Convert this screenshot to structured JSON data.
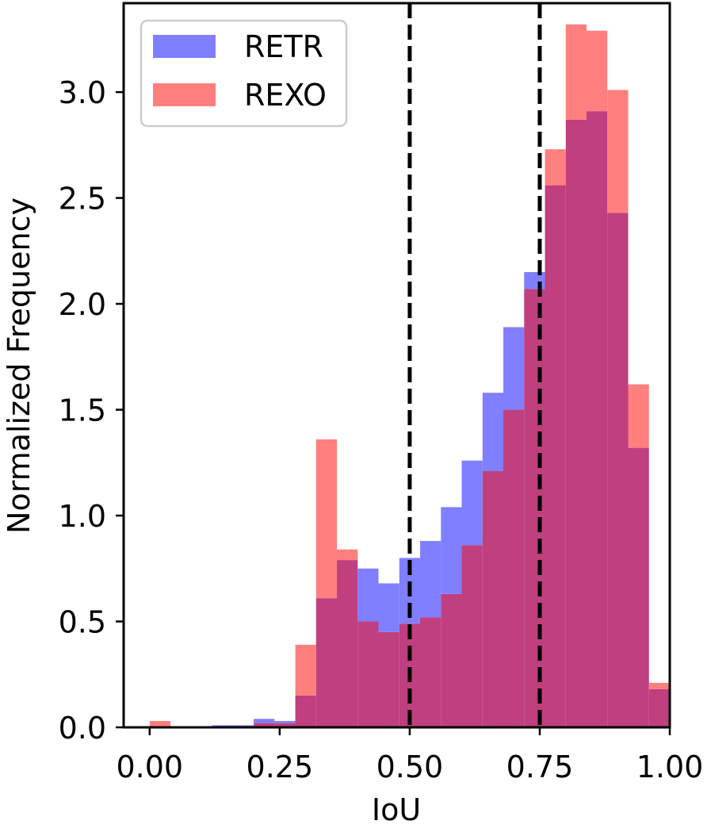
{
  "chart_data": {
    "type": "histogram",
    "xlabel": "IoU",
    "ylabel": "Normalized Frequency",
    "xlim": [
      -0.05,
      1.0
    ],
    "ylim": [
      0,
      3.42
    ],
    "x_ticks": [
      0.0,
      0.25,
      0.5,
      0.75,
      1.0
    ],
    "x_tick_labels": [
      "0.00",
      "0.25",
      "0.50",
      "0.75",
      "1.00"
    ],
    "y_ticks": [
      0.0,
      0.5,
      1.0,
      1.5,
      2.0,
      2.5,
      3.0
    ],
    "y_tick_labels": [
      "0.0",
      "0.5",
      "1.0",
      "1.5",
      "2.0",
      "2.5",
      "3.0"
    ],
    "bin_edges": [
      0.0,
      0.04,
      0.08,
      0.12,
      0.16,
      0.2,
      0.24,
      0.28,
      0.32,
      0.36,
      0.4,
      0.44,
      0.48,
      0.52,
      0.56,
      0.6,
      0.64,
      0.68,
      0.72,
      0.76,
      0.8,
      0.84,
      0.88,
      0.92,
      0.96,
      1.0
    ],
    "series": [
      {
        "name": "RETR",
        "color": "#7f7fff",
        "values": [
          0.0,
          0.0,
          0.0,
          0.01,
          0.01,
          0.04,
          0.03,
          0.15,
          0.61,
          0.79,
          0.75,
          0.68,
          0.8,
          0.88,
          1.04,
          1.26,
          1.58,
          1.89,
          2.15,
          2.56,
          2.87,
          2.91,
          2.43,
          1.32,
          0.18
        ]
      },
      {
        "name": "REXO",
        "color": "#ff7f7f",
        "values": [
          0.03,
          0.0,
          0.0,
          0.0,
          0.0,
          0.02,
          0.02,
          0.39,
          1.36,
          0.84,
          0.5,
          0.45,
          0.49,
          0.52,
          0.63,
          0.86,
          1.21,
          1.5,
          2.07,
          2.73,
          3.32,
          3.29,
          3.01,
          1.62,
          0.21
        ]
      }
    ],
    "overlap_color": "#bf3f7f",
    "vlines": [
      0.5,
      0.75
    ],
    "vline_style": "dashed",
    "legend": {
      "position": "top-left",
      "entries": [
        "RETR",
        "REXO"
      ]
    }
  }
}
